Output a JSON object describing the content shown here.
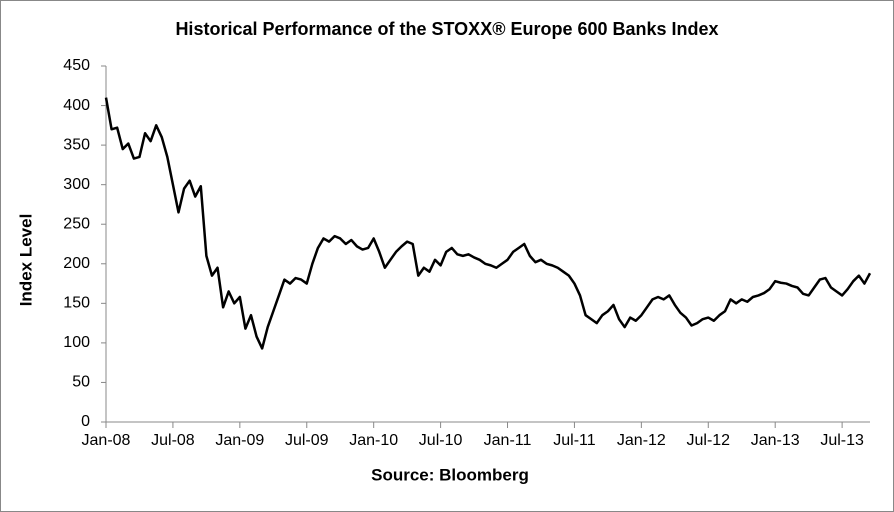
{
  "chart_data": {
    "type": "line",
    "title": "Historical Performance of the STOXX® Europe 600 Banks Index",
    "x_label": "Source: Bloomberg",
    "y_label": "Index Level",
    "categories": [
      "Jan-08",
      null,
      null,
      null,
      null,
      null,
      null,
      null,
      null,
      null,
      null,
      null,
      "Jul-08",
      null,
      null,
      null,
      null,
      null,
      null,
      null,
      null,
      null,
      null,
      null,
      "Jan-09",
      null,
      null,
      null,
      null,
      null,
      null,
      null,
      null,
      null,
      null,
      null,
      "Jul-09",
      null,
      null,
      null,
      null,
      null,
      null,
      null,
      null,
      null,
      null,
      null,
      "Jan-10",
      null,
      null,
      null,
      null,
      null,
      null,
      null,
      null,
      null,
      null,
      null,
      "Jul-10",
      null,
      null,
      null,
      null,
      null,
      null,
      null,
      null,
      null,
      null,
      null,
      "Jan-11",
      null,
      null,
      null,
      null,
      null,
      null,
      null,
      null,
      null,
      null,
      null,
      "Jul-11",
      null,
      null,
      null,
      null,
      null,
      null,
      null,
      null,
      null,
      null,
      null,
      "Jan-12",
      null,
      null,
      null,
      null,
      null,
      null,
      null,
      null,
      null,
      null,
      null,
      "Jul-12",
      null,
      null,
      null,
      null,
      null,
      null,
      null,
      null,
      null,
      null,
      null,
      "Jan-13",
      null,
      null,
      null,
      null,
      null,
      null,
      null,
      null,
      null,
      null,
      null,
      "Jul-13",
      null,
      null,
      null,
      null,
      null
    ],
    "series": [
      {
        "color": "#000000",
        "values": [
          410,
          370,
          372,
          345,
          352,
          333,
          335,
          365,
          355,
          375,
          360,
          335,
          300,
          265,
          295,
          305,
          285,
          298,
          210,
          185,
          195,
          145,
          165,
          150,
          158,
          118,
          135,
          108,
          93,
          120,
          140,
          160,
          180,
          175,
          182,
          180,
          175,
          200,
          220,
          232,
          228,
          235,
          232,
          225,
          230,
          222,
          218,
          220,
          232,
          215,
          195,
          205,
          215,
          222,
          228,
          225,
          185,
          195,
          190,
          205,
          198,
          215,
          220,
          212,
          210,
          212,
          208,
          205,
          200,
          198,
          195,
          200,
          205,
          215,
          220,
          225,
          210,
          202,
          205,
          200,
          198,
          195,
          190,
          185,
          175,
          160,
          135,
          130,
          125,
          135,
          140,
          148,
          130,
          120,
          132,
          128,
          135,
          145,
          155,
          158,
          155,
          160,
          148,
          138,
          132,
          122,
          125,
          130,
          132,
          128,
          135,
          140,
          155,
          150,
          155,
          152,
          158,
          160,
          163,
          168,
          178,
          176,
          175,
          172,
          170,
          162,
          160,
          170,
          180,
          182,
          170,
          165,
          160,
          168,
          178,
          185,
          175,
          188
        ]
      }
    ],
    "ylim": [
      0,
      450
    ],
    "yticks": [
      0,
      50,
      100,
      150,
      200,
      250,
      300,
      350,
      400,
      450
    ],
    "grid": false
  }
}
